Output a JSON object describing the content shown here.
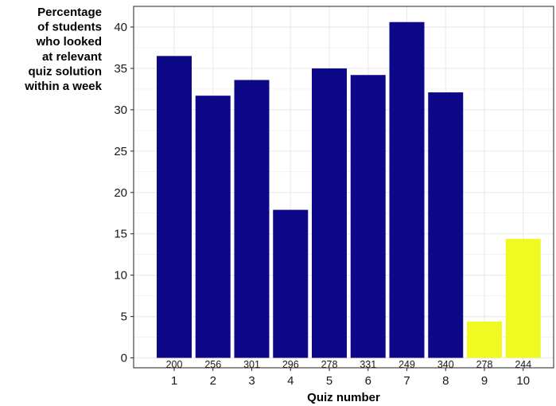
{
  "chart_data": {
    "type": "bar",
    "title": "",
    "ylabel_lines": [
      "Percentage",
      "of students",
      "who looked",
      "at relevant",
      "quiz solution",
      "within a week"
    ],
    "xlabel": "Quiz number",
    "categories": [
      "1",
      "2",
      "3",
      "4",
      "5",
      "6",
      "7",
      "8",
      "9",
      "10"
    ],
    "values": [
      36.5,
      31.7,
      33.6,
      17.9,
      35.0,
      34.2,
      40.6,
      32.1,
      4.4,
      14.4
    ],
    "counts": [
      "200",
      "256",
      "301",
      "296",
      "278",
      "331",
      "249",
      "340",
      "278",
      "244"
    ],
    "ylim": [
      -1.2,
      42.5
    ],
    "yticks": [
      0,
      5,
      10,
      15,
      20,
      25,
      30,
      35,
      40
    ],
    "grid": true,
    "colors": {
      "primary": "#0d0887",
      "highlight": "#f0f921",
      "panel": "#ffffff",
      "grid": "#ebebeb"
    },
    "bar_colors": [
      "#0d0887",
      "#0d0887",
      "#0d0887",
      "#0d0887",
      "#0d0887",
      "#0d0887",
      "#0d0887",
      "#0d0887",
      "#f0f921",
      "#f0f921"
    ]
  }
}
